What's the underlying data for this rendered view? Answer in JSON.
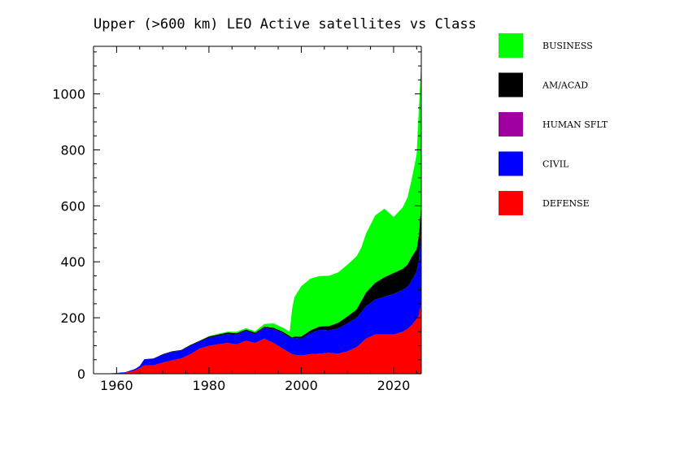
{
  "chart_data": {
    "type": "area",
    "stacked": true,
    "title": "Upper (>600 km) LEO Active satellites vs Class",
    "xlabel": "",
    "ylabel": "",
    "xlim": [
      1955,
      2026
    ],
    "ylim": [
      0,
      1170
    ],
    "x_ticks": [
      1960,
      1980,
      2000,
      2020
    ],
    "y_ticks": [
      0,
      200,
      400,
      600,
      800,
      1000
    ],
    "legend_position": "right",
    "grid": false,
    "x": [
      1955,
      1957,
      1958,
      1960,
      1962,
      1964,
      1965,
      1966,
      1968,
      1970,
      1972,
      1974,
      1976,
      1978,
      1980,
      1982,
      1984,
      1986,
      1988,
      1990,
      1992,
      1994,
      1996,
      1997.5,
      1998,
      1998.5,
      2000,
      2002,
      2004,
      2006,
      2008,
      2010,
      2012,
      2013,
      2014,
      2016,
      2018,
      2020,
      2022,
      2023,
      2024,
      2025,
      2025.5,
      2026
    ],
    "series": [
      {
        "name": "DEFENSE",
        "color": "#ff0000",
        "values": [
          0,
          0,
          1,
          2,
          4,
          12,
          20,
          30,
          30,
          40,
          48,
          55,
          70,
          90,
          100,
          105,
          110,
          105,
          118,
          110,
          125,
          110,
          90,
          75,
          70,
          68,
          65,
          70,
          72,
          75,
          72,
          80,
          95,
          110,
          125,
          140,
          140,
          140,
          150,
          160,
          175,
          195,
          210,
          255
        ]
      },
      {
        "name": "CIVIL",
        "color": "#0000ff",
        "values": [
          0,
          0,
          0,
          1,
          2,
          5,
          8,
          22,
          25,
          28,
          30,
          28,
          30,
          25,
          28,
          30,
          32,
          35,
          35,
          32,
          38,
          50,
          55,
          55,
          55,
          60,
          60,
          75,
          85,
          80,
          90,
          100,
          105,
          110,
          115,
          125,
          135,
          145,
          150,
          150,
          160,
          170,
          200,
          265
        ]
      },
      {
        "name": "HUMAN SFLT",
        "color": "#a000a0",
        "values": [
          0,
          0,
          0,
          0,
          0,
          0,
          0,
          0,
          0,
          0,
          0,
          0,
          0,
          0,
          0,
          0,
          0,
          0,
          0,
          0,
          0,
          0,
          0,
          0,
          0,
          0,
          0,
          0,
          0,
          0,
          0,
          0,
          0,
          0,
          0,
          0,
          0,
          0,
          0,
          0,
          0,
          0,
          0,
          0
        ]
      },
      {
        "name": "AM/ACAD",
        "color": "#000000",
        "values": [
          0,
          0,
          0,
          0,
          0,
          0,
          0,
          0,
          0,
          2,
          2,
          2,
          3,
          3,
          5,
          5,
          5,
          5,
          5,
          5,
          5,
          5,
          5,
          5,
          5,
          5,
          8,
          10,
          12,
          15,
          20,
          25,
          30,
          40,
          50,
          60,
          70,
          75,
          75,
          80,
          85,
          80,
          90,
          100
        ]
      },
      {
        "name": "BUSINESS",
        "color": "#00ff00",
        "values": [
          0,
          0,
          0,
          0,
          0,
          0,
          0,
          0,
          0,
          0,
          0,
          0,
          0,
          0,
          2,
          3,
          3,
          5,
          5,
          5,
          10,
          15,
          15,
          15,
          100,
          140,
          180,
          185,
          180,
          180,
          180,
          185,
          190,
          190,
          210,
          240,
          245,
          200,
          220,
          240,
          280,
          340,
          460,
          500
        ]
      }
    ]
  }
}
